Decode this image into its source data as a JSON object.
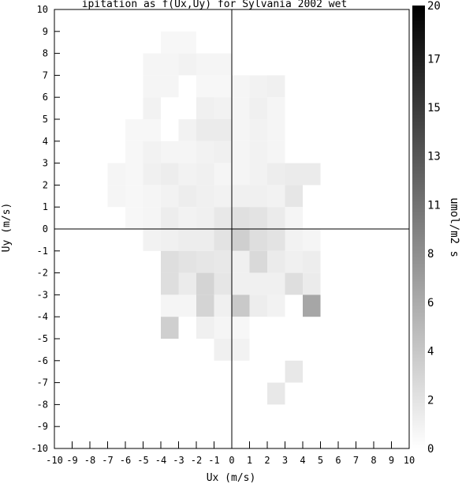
{
  "chart_data": {
    "type": "heatmap",
    "title": "ipitation as f(Ux,Uy) for Sylvania 2002 wet ",
    "xlabel": "Ux (m/s)",
    "ylabel": "Uy (m/s)",
    "colorbar_label": "umol/m2 s",
    "xlim": [
      -10,
      10
    ],
    "ylim": [
      -10,
      10
    ],
    "x_ticks": [
      "-10",
      "-9",
      "-8",
      "-7",
      "-6",
      "-5",
      "-4",
      "-3",
      "-2",
      "-1",
      "0",
      "1",
      "2",
      "3",
      "4",
      "5",
      "6",
      "7",
      "8",
      "9",
      "10"
    ],
    "y_ticks": [
      "-10",
      "-9",
      "-8",
      "-7",
      "-6",
      "-5",
      "-4",
      "-3",
      "-2",
      "-1",
      "0",
      "1",
      "2",
      "3",
      "4",
      "5",
      "6",
      "7",
      "8",
      "9",
      "10"
    ],
    "colorbar_ticks": [
      "0",
      "2",
      "4",
      "6",
      "8",
      "11",
      "13",
      "15",
      "17",
      "20"
    ],
    "colorbar_tick_values": [
      0,
      2.2,
      4.4,
      6.6,
      8.8,
      11,
      13.2,
      15.4,
      17.6,
      20
    ],
    "vmin": 0,
    "vmax": 20,
    "colormap": "white-to-black grayscale",
    "bin_size": 1,
    "cells": [
      {
        "x": -4,
        "y": 8,
        "v": 0.6
      },
      {
        "x": -3,
        "y": 8,
        "v": 0.6
      },
      {
        "x": -5,
        "y": 7,
        "v": 0.8
      },
      {
        "x": -4,
        "y": 7,
        "v": 0.8
      },
      {
        "x": -3,
        "y": 7,
        "v": 1.0
      },
      {
        "x": -2,
        "y": 7,
        "v": 0.8
      },
      {
        "x": -1,
        "y": 7,
        "v": 0.8
      },
      {
        "x": -5,
        "y": 6,
        "v": 0.8
      },
      {
        "x": -4,
        "y": 6,
        "v": 0.8
      },
      {
        "x": -2,
        "y": 6,
        "v": 0.6
      },
      {
        "x": -1,
        "y": 6,
        "v": 0.6
      },
      {
        "x": 0,
        "y": 6,
        "v": 0.8
      },
      {
        "x": 1,
        "y": 6,
        "v": 1.0
      },
      {
        "x": 2,
        "y": 6,
        "v": 1.2
      },
      {
        "x": -5,
        "y": 5,
        "v": 1.0
      },
      {
        "x": -2,
        "y": 5,
        "v": 1.2
      },
      {
        "x": -1,
        "y": 5,
        "v": 1.0
      },
      {
        "x": 0,
        "y": 5,
        "v": 0.8
      },
      {
        "x": 1,
        "y": 5,
        "v": 1.2
      },
      {
        "x": 2,
        "y": 5,
        "v": 0.8
      },
      {
        "x": -6,
        "y": 4,
        "v": 0.6
      },
      {
        "x": -5,
        "y": 4,
        "v": 0.6
      },
      {
        "x": -3,
        "y": 4,
        "v": 1.0
      },
      {
        "x": -2,
        "y": 4,
        "v": 1.6
      },
      {
        "x": -1,
        "y": 4,
        "v": 1.6
      },
      {
        "x": 0,
        "y": 4,
        "v": 0.8
      },
      {
        "x": 1,
        "y": 4,
        "v": 1.0
      },
      {
        "x": 2,
        "y": 4,
        "v": 0.8
      },
      {
        "x": -6,
        "y": 3,
        "v": 0.6
      },
      {
        "x": -5,
        "y": 3,
        "v": 1.0
      },
      {
        "x": -4,
        "y": 3,
        "v": 0.8
      },
      {
        "x": -3,
        "y": 3,
        "v": 0.8
      },
      {
        "x": -2,
        "y": 3,
        "v": 1.0
      },
      {
        "x": -1,
        "y": 3,
        "v": 1.2
      },
      {
        "x": 0,
        "y": 3,
        "v": 0.8
      },
      {
        "x": 1,
        "y": 3,
        "v": 1.0
      },
      {
        "x": 2,
        "y": 3,
        "v": 0.8
      },
      {
        "x": -7,
        "y": 2,
        "v": 0.8
      },
      {
        "x": -6,
        "y": 2,
        "v": 0.6
      },
      {
        "x": -5,
        "y": 2,
        "v": 1.2
      },
      {
        "x": -4,
        "y": 2,
        "v": 1.4
      },
      {
        "x": -3,
        "y": 2,
        "v": 1.0
      },
      {
        "x": -2,
        "y": 2,
        "v": 1.2
      },
      {
        "x": -1,
        "y": 2,
        "v": 0.8
      },
      {
        "x": 0,
        "y": 2,
        "v": 0.8
      },
      {
        "x": 1,
        "y": 2,
        "v": 1.0
      },
      {
        "x": 2,
        "y": 2,
        "v": 1.4
      },
      {
        "x": 3,
        "y": 2,
        "v": 1.6
      },
      {
        "x": 4,
        "y": 2,
        "v": 1.6
      },
      {
        "x": -7,
        "y": 1,
        "v": 0.8
      },
      {
        "x": -6,
        "y": 1,
        "v": 0.6
      },
      {
        "x": -5,
        "y": 1,
        "v": 0.8
      },
      {
        "x": -4,
        "y": 1,
        "v": 1.0
      },
      {
        "x": -3,
        "y": 1,
        "v": 1.4
      },
      {
        "x": -2,
        "y": 1,
        "v": 1.2
      },
      {
        "x": -1,
        "y": 1,
        "v": 1.0
      },
      {
        "x": 0,
        "y": 1,
        "v": 1.2
      },
      {
        "x": 1,
        "y": 1,
        "v": 1.2
      },
      {
        "x": 2,
        "y": 1,
        "v": 1.0
      },
      {
        "x": 3,
        "y": 1,
        "v": 2.0
      },
      {
        "x": -6,
        "y": 0,
        "v": 0.6
      },
      {
        "x": -5,
        "y": 0,
        "v": 0.8
      },
      {
        "x": -4,
        "y": 0,
        "v": 1.4
      },
      {
        "x": -3,
        "y": 0,
        "v": 1.0
      },
      {
        "x": -2,
        "y": 0,
        "v": 1.2
      },
      {
        "x": -1,
        "y": 0,
        "v": 1.8
      },
      {
        "x": 0,
        "y": 0,
        "v": 2.4
      },
      {
        "x": 1,
        "y": 0,
        "v": 2.2
      },
      {
        "x": 2,
        "y": 0,
        "v": 1.6
      },
      {
        "x": 3,
        "y": 0,
        "v": 0.8
      },
      {
        "x": -5,
        "y": -1,
        "v": 1.0
      },
      {
        "x": -4,
        "y": -1,
        "v": 1.2
      },
      {
        "x": -3,
        "y": -1,
        "v": 1.4
      },
      {
        "x": -2,
        "y": -1,
        "v": 1.4
      },
      {
        "x": -1,
        "y": -1,
        "v": 2.2
      },
      {
        "x": 0,
        "y": -1,
        "v": 3.8
      },
      {
        "x": 1,
        "y": -1,
        "v": 2.6
      },
      {
        "x": 2,
        "y": -1,
        "v": 2.2
      },
      {
        "x": 3,
        "y": -1,
        "v": 1.0
      },
      {
        "x": 4,
        "y": -1,
        "v": 0.8
      },
      {
        "x": -4,
        "y": -2,
        "v": 2.6
      },
      {
        "x": -3,
        "y": -2,
        "v": 2.2
      },
      {
        "x": -2,
        "y": -2,
        "v": 2.0
      },
      {
        "x": -1,
        "y": -2,
        "v": 1.8
      },
      {
        "x": 0,
        "y": -2,
        "v": 1.2
      },
      {
        "x": 1,
        "y": -2,
        "v": 3.0
      },
      {
        "x": 2,
        "y": -2,
        "v": 1.6
      },
      {
        "x": 3,
        "y": -2,
        "v": 1.2
      },
      {
        "x": 4,
        "y": -2,
        "v": 1.4
      },
      {
        "x": -4,
        "y": -3,
        "v": 2.6
      },
      {
        "x": -3,
        "y": -3,
        "v": 1.6
      },
      {
        "x": -2,
        "y": -3,
        "v": 3.4
      },
      {
        "x": -1,
        "y": -3,
        "v": 2.0
      },
      {
        "x": 0,
        "y": -3,
        "v": 1.2
      },
      {
        "x": 1,
        "y": -3,
        "v": 1.2
      },
      {
        "x": 2,
        "y": -3,
        "v": 1.2
      },
      {
        "x": 3,
        "y": -3,
        "v": 2.6
      },
      {
        "x": 4,
        "y": -3,
        "v": 1.6
      },
      {
        "x": -4,
        "y": -4,
        "v": 0.8
      },
      {
        "x": -3,
        "y": -4,
        "v": 0.8
      },
      {
        "x": -2,
        "y": -4,
        "v": 3.4
      },
      {
        "x": -1,
        "y": -4,
        "v": 1.2
      },
      {
        "x": 0,
        "y": -4,
        "v": 4.2
      },
      {
        "x": 1,
        "y": -4,
        "v": 1.4
      },
      {
        "x": 2,
        "y": -4,
        "v": 1.0
      },
      {
        "x": 4,
        "y": -4,
        "v": 7.0
      },
      {
        "x": -4,
        "y": -5,
        "v": 3.8
      },
      {
        "x": -2,
        "y": -5,
        "v": 1.2
      },
      {
        "x": -1,
        "y": -5,
        "v": 0.8
      },
      {
        "x": 0,
        "y": -5,
        "v": 0.6
      },
      {
        "x": -1,
        "y": -6,
        "v": 1.2
      },
      {
        "x": 0,
        "y": -6,
        "v": 1.0
      },
      {
        "x": 3,
        "y": -7,
        "v": 1.8
      },
      {
        "x": 2,
        "y": -8,
        "v": 1.8
      }
    ]
  }
}
